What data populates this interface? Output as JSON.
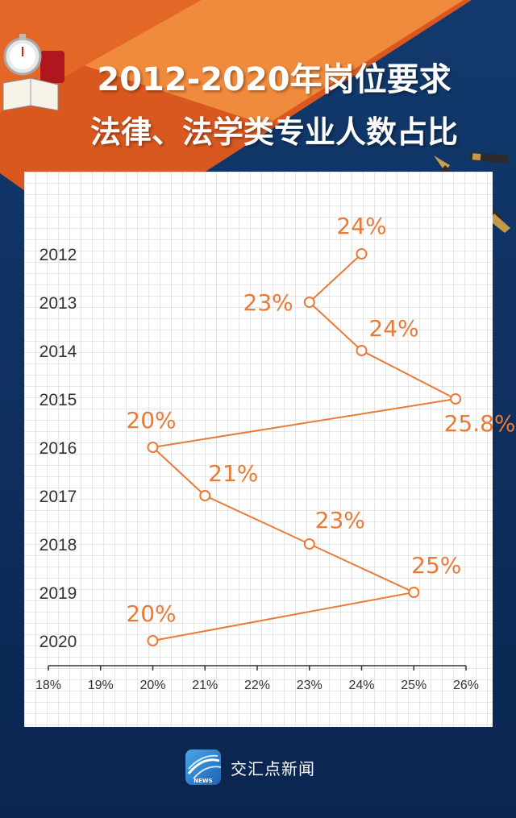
{
  "title": {
    "line1": "2012-2020年岗位要求",
    "line2": "法律、法学类专业人数占比"
  },
  "footer": {
    "brand": "交汇点新闻",
    "logo_text": "NEWS"
  },
  "colors": {
    "accent": "#ea7a35",
    "background": "#0d2a55",
    "banner": "#ee7430"
  },
  "chart_data": {
    "type": "line",
    "orientation": "horizontal",
    "categories": [
      "2012",
      "2013",
      "2014",
      "2015",
      "2016",
      "2017",
      "2018",
      "2019",
      "2020"
    ],
    "values": [
      24,
      23,
      24,
      25.8,
      20,
      21,
      23,
      25,
      20
    ],
    "data_labels": [
      "24%",
      "23%",
      "24%",
      "25.8%",
      "20%",
      "21%",
      "23%",
      "25%",
      "20%"
    ],
    "x_ticks": [
      "18%",
      "19%",
      "20%",
      "21%",
      "22%",
      "23%",
      "24%",
      "25%",
      "26%"
    ],
    "xlim": [
      18,
      26
    ],
    "grid": true
  }
}
